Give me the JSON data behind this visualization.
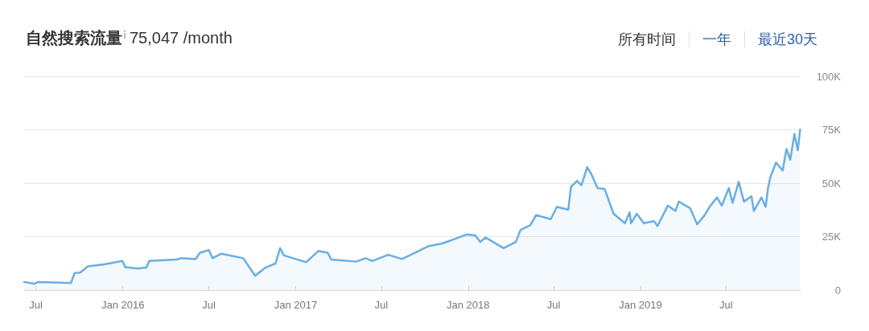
{
  "chart_data": {
    "type": "area",
    "title": "自然搜索流量",
    "subtitle": "75,047 /month",
    "annotations": [
      "所有时间",
      "一年",
      "最近30天"
    ],
    "x": [
      "2015-06-06",
      "2015-06-27",
      "2015-07-06",
      "2015-09-13",
      "2015-09-21",
      "2015-10-03",
      "2015-10-19",
      "2015-11-23",
      "2015-12-31",
      "2016-01-06",
      "2016-02-01",
      "2016-02-20",
      "2016-02-26",
      "2016-04-24",
      "2016-05-03",
      "2016-06-03",
      "2016-06-12",
      "2016-07-01",
      "2016-07-09",
      "2016-07-27",
      "2016-09-12",
      "2016-10-07",
      "2016-10-29",
      "2016-11-19",
      "2016-11-29",
      "2016-12-07",
      "2017-01-23",
      "2017-02-18",
      "2017-03-10",
      "2017-03-17",
      "2017-05-09",
      "2017-05-29",
      "2017-06-12",
      "2017-07-16",
      "2017-08-14",
      "2017-10-10",
      "2017-11-08",
      "2017-12-29",
      "2018-01-16",
      "2018-01-27",
      "2018-02-07",
      "2018-03-17",
      "2018-04-12",
      "2018-04-22",
      "2018-05-13",
      "2018-05-25",
      "2018-06-25",
      "2018-07-08",
      "2018-08-01",
      "2018-08-07",
      "2018-08-20",
      "2018-08-29",
      "2018-09-10",
      "2018-09-18",
      "2018-10-02",
      "2018-10-17",
      "2018-11-05",
      "2018-11-29",
      "2018-12-09",
      "2018-12-12",
      "2018-12-24",
      "2019-01-08",
      "2019-01-30",
      "2019-02-06",
      "2019-02-28",
      "2019-03-16",
      "2019-03-23",
      "2019-04-16",
      "2019-05-01",
      "2019-05-17",
      "2019-05-27",
      "2019-06-12",
      "2019-06-22",
      "2019-07-07",
      "2019-07-15",
      "2019-07-28",
      "2019-08-08",
      "2019-08-24",
      "2019-08-29",
      "2019-09-14",
      "2019-09-23",
      "2019-09-28",
      "2019-10-03",
      "2019-10-15",
      "2019-10-29",
      "2019-11-06",
      "2019-11-14",
      "2019-11-23",
      "2019-11-30",
      "2019-12-05"
    ],
    "series": [
      {
        "color": "#6aaee4",
        "values": [
          3800,
          2900,
          3800,
          3300,
          8000,
          8200,
          11100,
          12000,
          13600,
          10700,
          10100,
          10500,
          13600,
          14300,
          14900,
          14500,
          17400,
          18700,
          14900,
          17000,
          14900,
          6700,
          10500,
          12400,
          19600,
          16200,
          13000,
          18300,
          17400,
          14300,
          13300,
          14900,
          13600,
          16500,
          14500,
          20600,
          21800,
          26000,
          25600,
          22500,
          24600,
          19600,
          22500,
          28100,
          30400,
          35100,
          33200,
          38900,
          37600,
          48400,
          51100,
          49000,
          57500,
          54700,
          47700,
          47300,
          35700,
          31300,
          36400,
          31300,
          35700,
          31300,
          32200,
          30000,
          39500,
          37000,
          41400,
          38300,
          30700,
          35100,
          38900,
          43300,
          39500,
          47700,
          40800,
          50600,
          41400,
          43900,
          37000,
          43300,
          38900,
          47700,
          52800,
          59700,
          55900,
          66000,
          61000,
          73000,
          65400,
          75100
        ]
      }
    ],
    "xlim": [
      "2015-06-06",
      "2019-12-06"
    ],
    "xticks": [
      {
        "value": "2015-07-01",
        "label": "Jul"
      },
      {
        "value": "2016-01-01",
        "label": "Jan 2016"
      },
      {
        "value": "2016-07-01",
        "label": "Jul"
      },
      {
        "value": "2017-01-01",
        "label": "Jan 2017"
      },
      {
        "value": "2017-07-01",
        "label": "Jul"
      },
      {
        "value": "2018-01-01",
        "label": "Jan 2018"
      },
      {
        "value": "2018-07-01",
        "label": "Jul"
      },
      {
        "value": "2019-01-01",
        "label": "Jan 2019"
      },
      {
        "value": "2019-07-01",
        "label": "Jul"
      }
    ],
    "ylim": [
      0,
      100000
    ],
    "yticks": [
      0,
      {
        "value": 25000,
        "label": "25K"
      },
      {
        "value": 50000,
        "label": "50K"
      },
      {
        "value": 75000,
        "label": "75K"
      },
      {
        "value": 100000,
        "label": "100K"
      }
    ],
    "grid": "y",
    "marker": "none",
    "line_style": "solid"
  }
}
